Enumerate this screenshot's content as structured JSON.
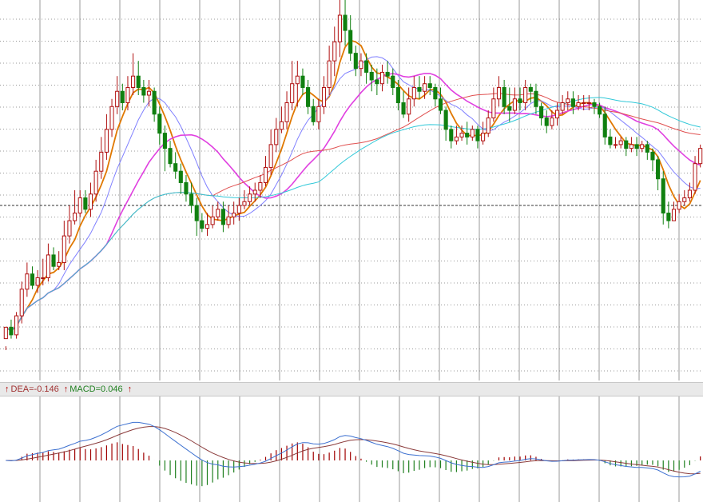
{
  "chart_data": {
    "type": "candlestick",
    "title": "",
    "grid": true,
    "main_panel": {
      "price_range": [
        0,
        100
      ],
      "reference_line": 46,
      "ohlc": [
        [
          11,
          14,
          9,
          8
        ],
        [
          14,
          12,
          16,
          11
        ],
        [
          12,
          17,
          18,
          11
        ],
        [
          17,
          24,
          26,
          15
        ],
        [
          24,
          28,
          31,
          22
        ],
        [
          28,
          25,
          30,
          24
        ],
        [
          25,
          27,
          29,
          23
        ],
        [
          27,
          27,
          32,
          25
        ],
        [
          27,
          33,
          36,
          26
        ],
        [
          33,
          30,
          35,
          29
        ],
        [
          30,
          31,
          34,
          29
        ],
        [
          31,
          38,
          42,
          29
        ],
        [
          38,
          42,
          46,
          36
        ],
        [
          42,
          44,
          50,
          41
        ],
        [
          44,
          48,
          50,
          43
        ],
        [
          48,
          45,
          50,
          44
        ],
        [
          45,
          49,
          52,
          43
        ],
        [
          49,
          55,
          58,
          47
        ],
        [
          55,
          60,
          64,
          53
        ],
        [
          60,
          66,
          70,
          58
        ],
        [
          66,
          72,
          74,
          64
        ],
        [
          72,
          76,
          80,
          70
        ],
        [
          76,
          73,
          78,
          71
        ],
        [
          73,
          77,
          80,
          71
        ],
        [
          77,
          80,
          86,
          75
        ],
        [
          80,
          77,
          84,
          75
        ],
        [
          77,
          75,
          79,
          73
        ],
        [
          75,
          76,
          79,
          72
        ],
        [
          76,
          70,
          77,
          68
        ],
        [
          70,
          65,
          72,
          62
        ],
        [
          65,
          61,
          67,
          55
        ],
        [
          61,
          57,
          63,
          56
        ],
        [
          57,
          55,
          60,
          53
        ],
        [
          55,
          52,
          57,
          49
        ],
        [
          52,
          49,
          54,
          47
        ],
        [
          49,
          46,
          52,
          44
        ],
        [
          46,
          42,
          48,
          38
        ],
        [
          42,
          40,
          44,
          39
        ],
        [
          40,
          41,
          44,
          38
        ],
        [
          41,
          43,
          46,
          40
        ],
        [
          43,
          45,
          47,
          42
        ],
        [
          45,
          41,
          47,
          39
        ],
        [
          41,
          43,
          46,
          40
        ],
        [
          43,
          44,
          47,
          41
        ],
        [
          44,
          46,
          48,
          42
        ],
        [
          46,
          47,
          50,
          45
        ],
        [
          47,
          49,
          51,
          46
        ],
        [
          49,
          50,
          52,
          47
        ],
        [
          50,
          52,
          54,
          48
        ],
        [
          52,
          56,
          59,
          51
        ],
        [
          56,
          62,
          66,
          54
        ],
        [
          62,
          66,
          69,
          60
        ],
        [
          66,
          68,
          72,
          65
        ],
        [
          68,
          73,
          76,
          66
        ],
        [
          73,
          78,
          84,
          71
        ],
        [
          78,
          80,
          84,
          72
        ],
        [
          80,
          77,
          82,
          75
        ],
        [
          77,
          72,
          79,
          70
        ],
        [
          72,
          68,
          74,
          67
        ],
        [
          68,
          72,
          74,
          66
        ],
        [
          72,
          77,
          80,
          70
        ],
        [
          77,
          84,
          88,
          75
        ],
        [
          84,
          89,
          93,
          80
        ],
        [
          89,
          96,
          100,
          85
        ],
        [
          96,
          92,
          100,
          88
        ],
        [
          92,
          86,
          96,
          84
        ],
        [
          86,
          82,
          88,
          80
        ],
        [
          82,
          84,
          86,
          80
        ],
        [
          84,
          81,
          86,
          78
        ],
        [
          81,
          79,
          83,
          76
        ],
        [
          79,
          78,
          82,
          75
        ],
        [
          78,
          81,
          83,
          76
        ],
        [
          81,
          80,
          84,
          78
        ],
        [
          80,
          77,
          82,
          75
        ],
        [
          77,
          73,
          79,
          71
        ],
        [
          73,
          70,
          76,
          69
        ],
        [
          70,
          74,
          77,
          68
        ],
        [
          74,
          77,
          80,
          72
        ],
        [
          77,
          76,
          80,
          74
        ],
        [
          76,
          78,
          80,
          74
        ],
        [
          78,
          77,
          80,
          75
        ],
        [
          77,
          74,
          78,
          72
        ],
        [
          74,
          71,
          77,
          70
        ],
        [
          71,
          66,
          72,
          63
        ],
        [
          66,
          63,
          67,
          61
        ],
        [
          63,
          64,
          67,
          62
        ],
        [
          64,
          65,
          67,
          63
        ],
        [
          65,
          64,
          68,
          62
        ],
        [
          64,
          66,
          67,
          63
        ],
        [
          66,
          63,
          67,
          61
        ],
        [
          63,
          65,
          68,
          62
        ],
        [
          65,
          69,
          71,
          64
        ],
        [
          69,
          74,
          77,
          68
        ],
        [
          74,
          77,
          80,
          72
        ],
        [
          77,
          72,
          79,
          70
        ],
        [
          72,
          71,
          77,
          68
        ],
        [
          71,
          74,
          77,
          70
        ],
        [
          74,
          73,
          77,
          71
        ],
        [
          73,
          77,
          79,
          71
        ],
        [
          77,
          76,
          78,
          73
        ],
        [
          76,
          72,
          78,
          70
        ],
        [
          72,
          69,
          73,
          67
        ],
        [
          69,
          67,
          71,
          65
        ],
        [
          67,
          69,
          71,
          66
        ],
        [
          69,
          71,
          73,
          67
        ],
        [
          71,
          73,
          75,
          70
        ],
        [
          73,
          74,
          76,
          71
        ],
        [
          74,
          72,
          76,
          70
        ],
        [
          72,
          73,
          75,
          71
        ],
        [
          73,
          73,
          75,
          71
        ],
        [
          73,
          73,
          75,
          71
        ],
        [
          73,
          72,
          74,
          70
        ],
        [
          72,
          70,
          73,
          69
        ],
        [
          70,
          64,
          72,
          62
        ],
        [
          64,
          62,
          66,
          61
        ],
        [
          62,
          62,
          64,
          61
        ],
        [
          62,
          63,
          64,
          61
        ],
        [
          63,
          61,
          64,
          59
        ],
        [
          61,
          62,
          64,
          60
        ],
        [
          62,
          61,
          64,
          59
        ],
        [
          61,
          62,
          63,
          60
        ],
        [
          62,
          60,
          63,
          58
        ],
        [
          60,
          58,
          61,
          55
        ],
        [
          58,
          53,
          59,
          50
        ],
        [
          53,
          44,
          55,
          41
        ],
        [
          44,
          42,
          47,
          40
        ],
        [
          42,
          45,
          47,
          43
        ],
        [
          45,
          47,
          49,
          44
        ],
        [
          47,
          48,
          50,
          46
        ],
        [
          48,
          50,
          52,
          47
        ],
        [
          50,
          57,
          59,
          49
        ],
        [
          57,
          61,
          62,
          56
        ]
      ],
      "ma_colors": [
        "#e07800",
        "#8080ff",
        "#e040e0",
        "#e05050",
        "#30c8d8"
      ]
    },
    "indicator_panel": {
      "name": "MACD",
      "labels": {
        "dea": "DEA=-0.146",
        "macd": "MACD=0.046"
      },
      "colors": {
        "diff": "#3c70d0",
        "dea": "#8a3a3a",
        "hist_pos": "#a00000",
        "hist_neg": "#208020"
      }
    }
  }
}
